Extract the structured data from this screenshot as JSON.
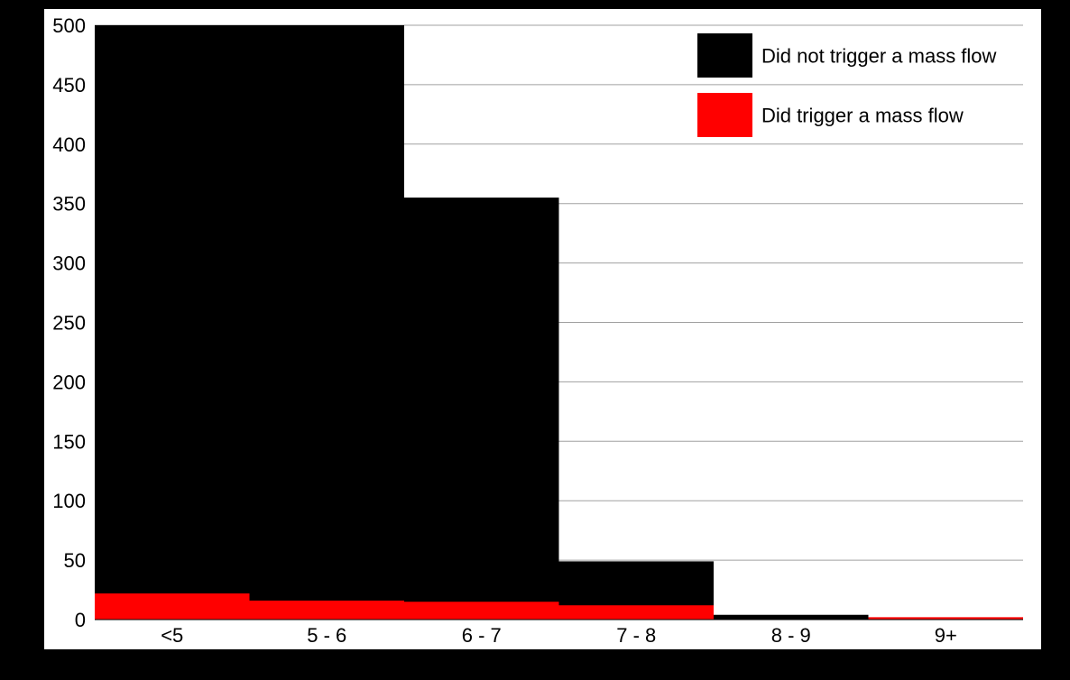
{
  "chart_data": {
    "type": "bar",
    "stacked": true,
    "categories": [
      "<5",
      "5 - 6",
      "6 - 7",
      "7 - 8",
      "8 - 9",
      "9+"
    ],
    "series": [
      {
        "name": "Did not trigger a mass flow",
        "color": "#000000",
        "values": [
          500,
          500,
          355,
          49,
          4,
          1
        ]
      },
      {
        "name": "Did trigger a mass flow",
        "color": "#ff0000",
        "values": [
          22,
          16,
          15,
          12,
          0,
          2
        ]
      }
    ],
    "y_ticks": [
      0,
      50,
      100,
      150,
      200,
      250,
      300,
      350,
      400,
      450,
      500
    ],
    "ylim": [
      0,
      500
    ],
    "grid": true,
    "legend": "top-right",
    "colors": {
      "background": "#000000",
      "plot_area": "#ffffff",
      "gridline": "#a0a0a0"
    }
  }
}
